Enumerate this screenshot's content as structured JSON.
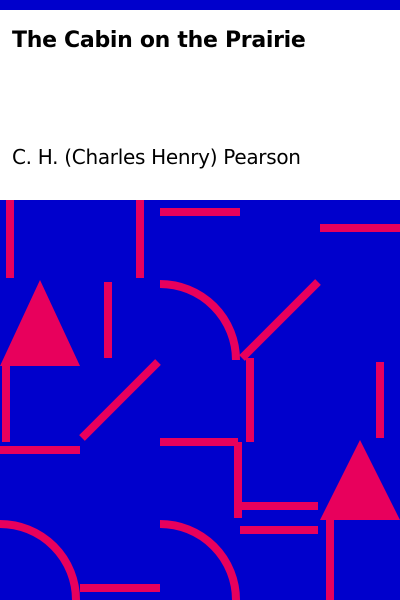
{
  "book": {
    "title": "The Cabin on the Prairie",
    "author": "C. H. (Charles Henry) Pearson"
  },
  "colors": {
    "bar": "#0000cc",
    "background": "#ffffff",
    "text": "#000000",
    "art_background": "#0000cc",
    "art_shapes": "#e8005c"
  }
}
